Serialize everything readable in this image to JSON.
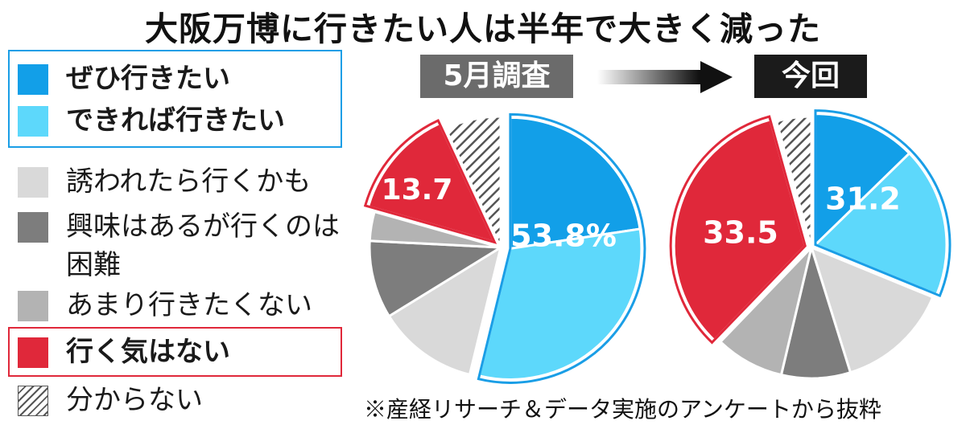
{
  "title": "大阪万博に行きたい人は半年で大きく減った",
  "legend": [
    {
      "label": "ぜひ行きたい",
      "color": "#129fe8",
      "hatch": false,
      "bold": true
    },
    {
      "label": "できれば行きたい",
      "color": "#5dd8fb",
      "hatch": false,
      "bold": true
    },
    {
      "label": "誘われたら行くかも",
      "color": "#d9d9d9",
      "hatch": false,
      "bold": false
    },
    {
      "label": "興味はあるが行くのは困難",
      "color": "#7d7d7d",
      "hatch": false,
      "bold": false
    },
    {
      "label": "あまり行きたくない",
      "color": "#b3b3b3",
      "hatch": false,
      "bold": false
    },
    {
      "label": "行く気はない",
      "color": "#e0283a",
      "hatch": false,
      "bold": true
    },
    {
      "label": "分からない",
      "color": "#ffffff",
      "hatch": true,
      "bold": false
    }
  ],
  "tags": {
    "before": "5月調査",
    "after": "今回"
  },
  "footnote": "※産経リサーチ＆データ実施のアンケートから抜粋",
  "chart_data": [
    {
      "type": "pie",
      "title": "5月調査",
      "slices": [
        {
          "category": "ぜひ行きたい",
          "value": 22.6
        },
        {
          "category": "できれば行きたい",
          "value": 31.2
        },
        {
          "category": "誘われたら行くかも",
          "value": 12.4
        },
        {
          "category": "興味はあるが行くのは困難",
          "value": 9.6
        },
        {
          "category": "あまり行きたくない",
          "value": 3.6
        },
        {
          "category": "行く気はない",
          "value": 13.7
        },
        {
          "category": "分からない",
          "value": 6.9
        }
      ],
      "data_labels": [
        {
          "category": "ぜひ行きたい+できれば行きたい",
          "text": "53.8%"
        },
        {
          "category": "行く気はない",
          "text": "13.7"
        }
      ]
    },
    {
      "type": "pie",
      "title": "今回",
      "slices": [
        {
          "category": "ぜひ行きたい",
          "value": 12.7
        },
        {
          "category": "できれば行きたい",
          "value": 18.5
        },
        {
          "category": "誘われたら行くかも",
          "value": 14.0
        },
        {
          "category": "興味はあるが行くのは困難",
          "value": 8.5
        },
        {
          "category": "あまり行きたくない",
          "value": 8.5
        },
        {
          "category": "行く気はない",
          "value": 33.5
        },
        {
          "category": "分からない",
          "value": 4.3
        }
      ],
      "data_labels": [
        {
          "category": "ぜひ行きたい+できれば行きたい",
          "text": "31.2"
        },
        {
          "category": "行く気はない",
          "text": "33.5"
        }
      ]
    }
  ]
}
